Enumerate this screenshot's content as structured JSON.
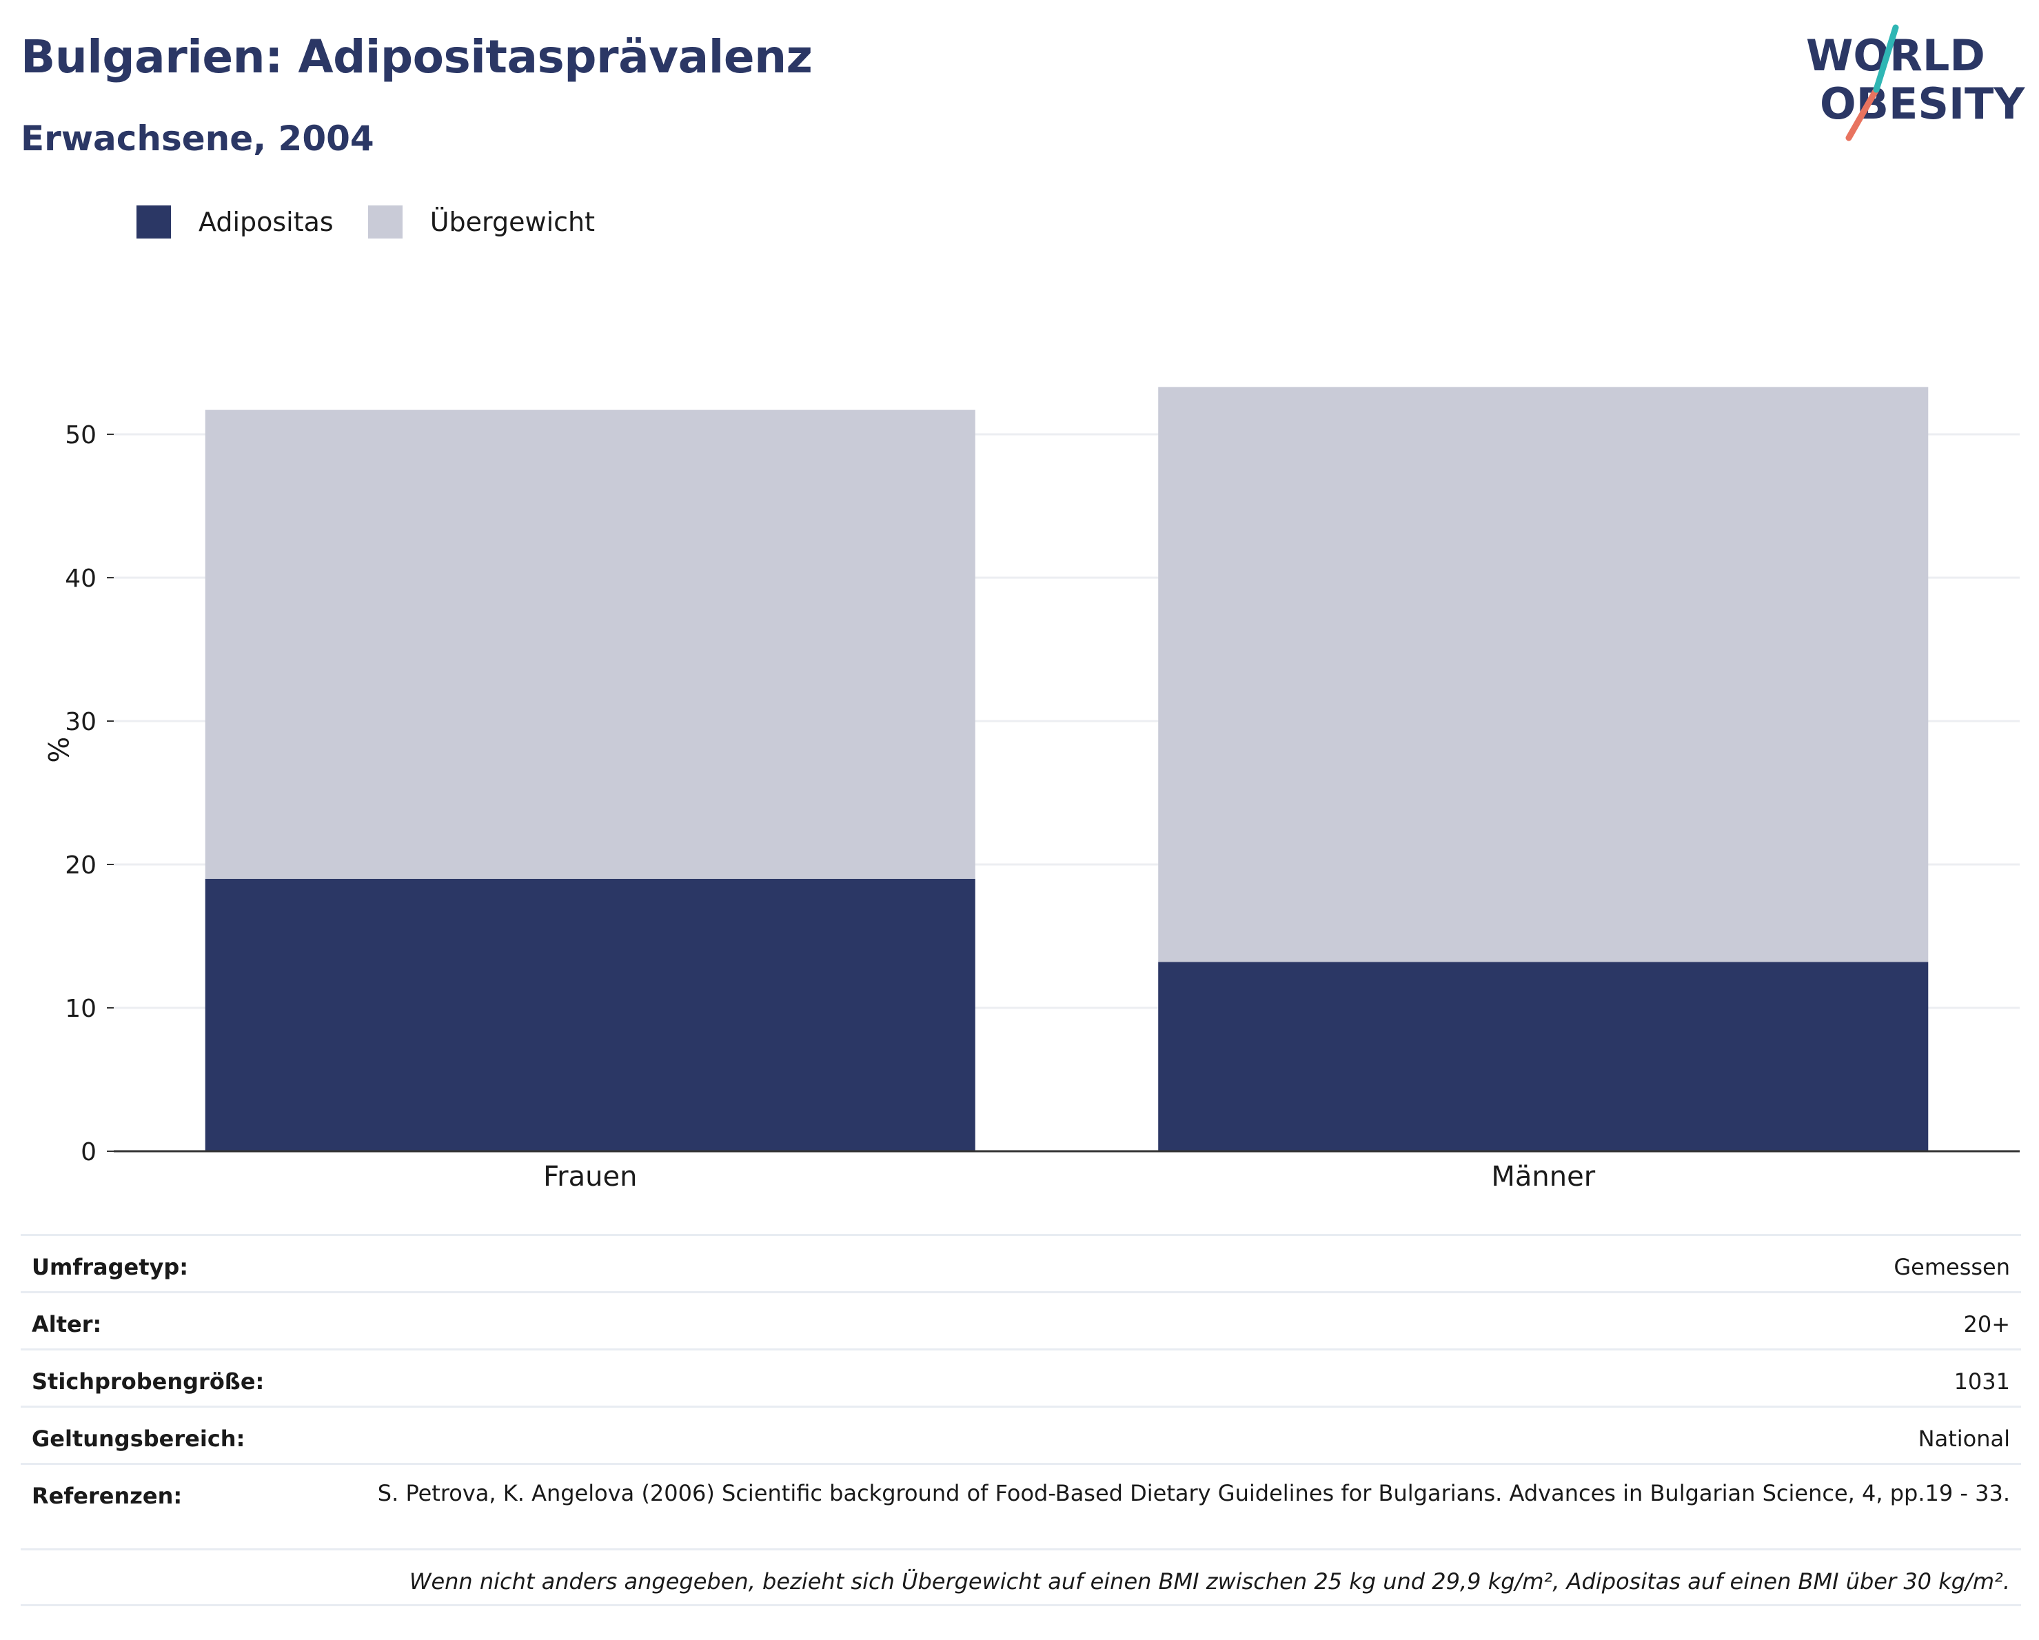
{
  "header": {
    "title": "Bulgarien: Adipositasprävalenz",
    "subtitle": "Erwachsene, 2004"
  },
  "logo": {
    "line1": "WORLD",
    "line2": "OBESITY"
  },
  "legend": [
    {
      "label": "Adipositas",
      "color": "#2b3765"
    },
    {
      "label": "Übergewicht",
      "color": "#c9cbd7"
    }
  ],
  "chart_data": {
    "type": "bar",
    "stacked": true,
    "categories": [
      "Frauen",
      "Männer"
    ],
    "series": [
      {
        "name": "Adipositas",
        "values": [
          19.0,
          13.2
        ],
        "color": "#2b3765"
      },
      {
        "name": "Übergewicht",
        "values": [
          32.7,
          40.1
        ],
        "color": "#c9cbd7"
      }
    ],
    "ylabel": "%",
    "ylim": [
      0,
      54
    ],
    "yticks": [
      0,
      10,
      20,
      30,
      40,
      50
    ],
    "grid": true
  },
  "meta": {
    "rows": [
      {
        "key": "Umfragetyp:",
        "value": "Gemessen"
      },
      {
        "key": "Alter:",
        "value": "20+"
      },
      {
        "key": "Stichprobengröße:",
        "value": "1031"
      },
      {
        "key": "Geltungsbereich:",
        "value": "National"
      },
      {
        "key": "Referenzen:",
        "value": "S. Petrova, K. Angelova (2006) Scientific background of Food-Based Dietary Guidelines for Bulgarians. Advances in Bulgarian Science, 4, pp.19 - 33."
      }
    ],
    "note": "Wenn nicht anders angegeben, bezieht sich Übergewicht auf einen BMI zwischen 25 kg und 29,9 kg/m², Adipositas auf einen BMI über 30 kg/m²."
  }
}
